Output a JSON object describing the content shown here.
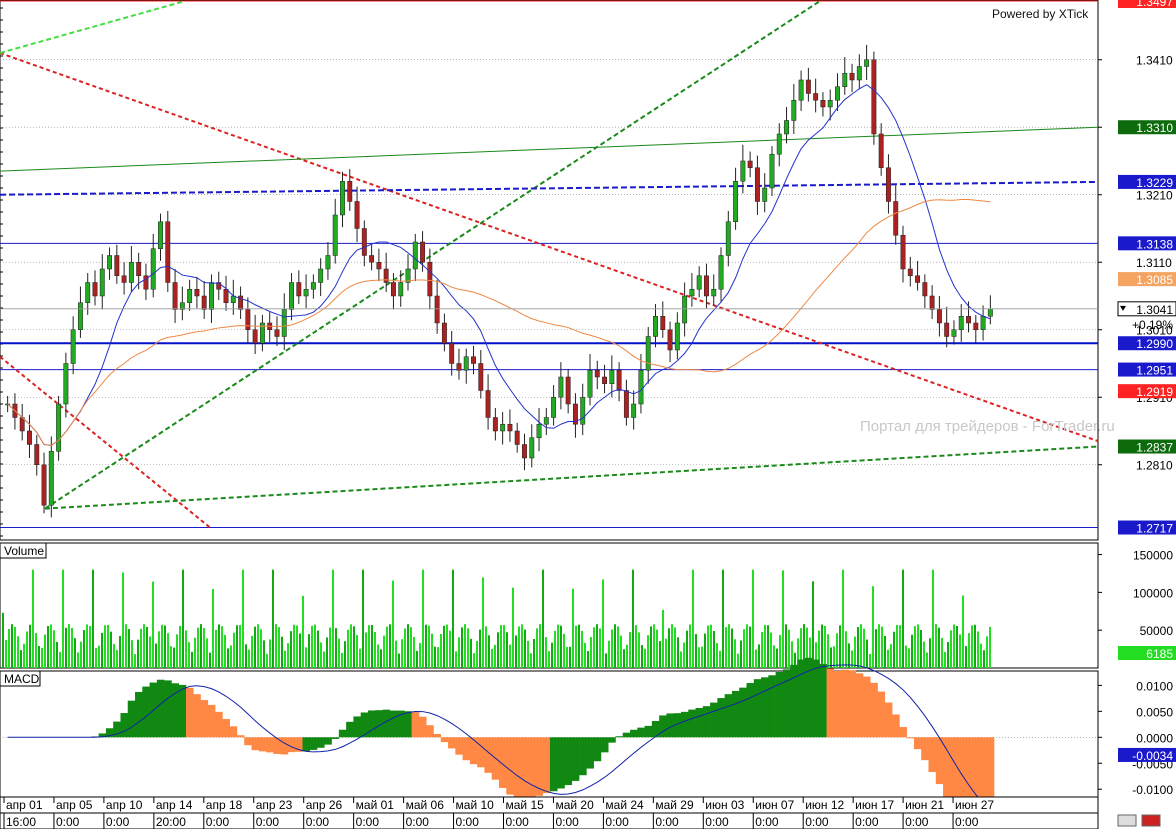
{
  "watermark_top": "Powered by XTick",
  "watermark_portal": "Портал для трейдеров - ForTrader.ru",
  "colors": {
    "up": "#22aa22",
    "down": "#aa2222",
    "ma_fast": "#2233cc",
    "ma_slow": "#ee8844",
    "volume": "#22dd22",
    "volume_dark": "#11aa11",
    "macd_pos": "#118811",
    "macd_neg": "#ff8844",
    "macd_signal": "#1122aa"
  },
  "chart_data": [
    {
      "type": "line",
      "name": "price",
      "ylim": [
        1.27,
        1.3497
      ],
      "y_ticks": [
        1.341,
        1.331,
        1.321,
        1.311,
        1.301,
        1.291,
        1.281
      ],
      "current": {
        "value": "1.3041",
        "change": "+0.19%"
      },
      "price_labels": [
        {
          "value": "1.3497",
          "color": "#ff2222"
        },
        {
          "value": "1.3310",
          "color": "#0d6b0d"
        },
        {
          "value": "1.3229",
          "color": "#1a1acc"
        },
        {
          "value": "1.3138",
          "color": "#1a1acc"
        },
        {
          "value": "1.3085",
          "color": "#f4a460"
        },
        {
          "value": "1.2990",
          "color": "#1a1acc"
        },
        {
          "value": "1.2951",
          "color": "#1a1acc"
        },
        {
          "value": "1.2919",
          "color": "#ff2222"
        },
        {
          "value": "1.2837",
          "color": "#0d6b0d"
        },
        {
          "value": "1.2717",
          "color": "#1a1acc"
        }
      ],
      "horizontal_lines": [
        1.3497,
        1.3138,
        1.299,
        1.2951,
        1.2717
      ],
      "series": [
        {
          "name": "close",
          "values": [
            1.29,
            1.288,
            1.286,
            1.284,
            1.281,
            1.275,
            1.283,
            1.29,
            1.296,
            1.301,
            1.305,
            1.308,
            1.306,
            1.31,
            1.312,
            1.309,
            1.308,
            1.311,
            1.309,
            1.307,
            1.313,
            1.317,
            1.308,
            1.304,
            1.305,
            1.307,
            1.306,
            1.304,
            1.308,
            1.307,
            1.305,
            1.306,
            1.304,
            1.301,
            1.299,
            1.302,
            1.301,
            1.3,
            1.304,
            1.308,
            1.306,
            1.307,
            1.308,
            1.31,
            1.312,
            1.318,
            1.323,
            1.32,
            1.316,
            1.312,
            1.311,
            1.31,
            1.308,
            1.306,
            1.308,
            1.31,
            1.314,
            1.311,
            1.306,
            1.302,
            1.299,
            1.296,
            1.295,
            1.297,
            1.296,
            1.292,
            1.288,
            1.286,
            1.287,
            1.286,
            1.284,
            1.282,
            1.285,
            1.287,
            1.288,
            1.291,
            1.294,
            1.29,
            1.287,
            1.291,
            1.295,
            1.294,
            1.293,
            1.295,
            1.292,
            1.288,
            1.29,
            1.295,
            1.3,
            1.303,
            1.301,
            1.298,
            1.302,
            1.306,
            1.307,
            1.309,
            1.306,
            1.307,
            1.312,
            1.317,
            1.323,
            1.326,
            1.325,
            1.32,
            1.322,
            1.327,
            1.33,
            1.332,
            1.335,
            1.338,
            1.336,
            1.335,
            1.334,
            1.335,
            1.337,
            1.339,
            1.338,
            1.34,
            1.341,
            1.33,
            1.325,
            1.32,
            1.315,
            1.31,
            1.309,
            1.308,
            1.306,
            1.304,
            1.302,
            1.3,
            1.301,
            1.303,
            1.302,
            1.301,
            1.303,
            1.3041
          ]
        },
        {
          "name": "ma_fast"
        },
        {
          "name": "ma_slow"
        }
      ]
    },
    {
      "type": "bar",
      "name": "Volume",
      "ylim": [
        0,
        160000
      ],
      "y_ticks": [
        150000,
        100000,
        50000
      ],
      "current": "6185",
      "values": []
    },
    {
      "type": "bar",
      "name": "MACD",
      "ylim": [
        -0.0115,
        0.012
      ],
      "y_ticks": [
        0.01,
        0.005,
        0.0,
        -0.005,
        -0.01
      ],
      "y_tick_labels": [
        "0.0100",
        "0.0050",
        "0.0000",
        "-0.0050",
        "-0.0100"
      ],
      "current": "-0.0034",
      "values": []
    }
  ],
  "x_axis": {
    "dates": [
      {
        "label": "апр 01",
        "time": "16:00"
      },
      {
        "label": "апр 05",
        "time": "0:00"
      },
      {
        "label": "апр 10",
        "time": "0:00"
      },
      {
        "label": "апр 14",
        "time": "20:00"
      },
      {
        "label": "апр 18",
        "time": "0:00"
      },
      {
        "label": "апр 23",
        "time": "0:00"
      },
      {
        "label": "апр 26",
        "time": "0:00"
      },
      {
        "label": "май 01",
        "time": "0:00"
      },
      {
        "label": "май 06",
        "time": "0:00"
      },
      {
        "label": "май 10",
        "time": "0:00"
      },
      {
        "label": "май 15",
        "time": "0:00"
      },
      {
        "label": "май 20",
        "time": "0:00"
      },
      {
        "label": "май 24",
        "time": "0:00"
      },
      {
        "label": "май 29",
        "time": "0:00"
      },
      {
        "label": "июн 03",
        "time": "0:00"
      },
      {
        "label": "июн 07",
        "time": "0:00"
      },
      {
        "label": "июн 12",
        "time": "0:00"
      },
      {
        "label": "июн 17",
        "time": "0:00"
      },
      {
        "label": "июн 21",
        "time": "0:00"
      },
      {
        "label": "июн 27",
        "time": "0:00"
      }
    ]
  }
}
